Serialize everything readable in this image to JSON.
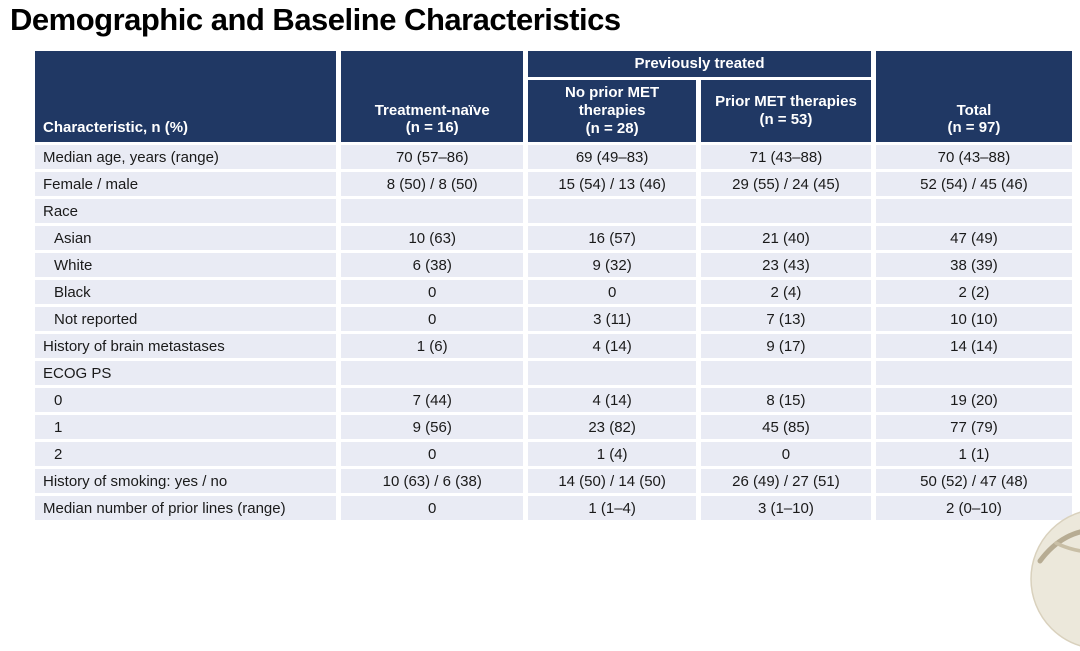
{
  "title": "Demographic and Baseline Characteristics",
  "table": {
    "row_header_label": "Characteristic, n (%)",
    "group_header": "Previously treated",
    "columns": [
      {
        "label": "Treatment-naïve",
        "n": "(n = 16)"
      },
      {
        "label": "No prior MET therapies",
        "n": "(n = 28)"
      },
      {
        "label": "Prior MET therapies",
        "n": "(n = 53)"
      },
      {
        "label": "Total",
        "n": "(n = 97)"
      }
    ],
    "rows": [
      {
        "label": "Median age, years (range)",
        "indent": false,
        "values": [
          "70 (57–86)",
          "69 (49–83)",
          "71 (43–88)",
          "70 (43–88)"
        ]
      },
      {
        "label": "Female / male",
        "indent": false,
        "values": [
          "8 (50) / 8 (50)",
          "15 (54) / 13 (46)",
          "29 (55) / 24 (45)",
          "52 (54) / 45 (46)"
        ]
      },
      {
        "label": "Race",
        "indent": false,
        "values": [
          "",
          "",
          "",
          ""
        ]
      },
      {
        "label": "Asian",
        "indent": true,
        "values": [
          "10 (63)",
          "16 (57)",
          "21 (40)",
          "47 (49)"
        ]
      },
      {
        "label": "White",
        "indent": true,
        "values": [
          "6 (38)",
          "9 (32)",
          "23 (43)",
          "38 (39)"
        ]
      },
      {
        "label": "Black",
        "indent": true,
        "values": [
          "0",
          "0",
          "2 (4)",
          "2 (2)"
        ]
      },
      {
        "label": "Not reported",
        "indent": true,
        "values": [
          "0",
          "3 (11)",
          "7 (13)",
          "10 (10)"
        ]
      },
      {
        "label": "History of brain metastases",
        "indent": false,
        "values": [
          "1 (6)",
          "4 (14)",
          "9 (17)",
          "14 (14)"
        ]
      },
      {
        "label": "ECOG PS",
        "indent": false,
        "values": [
          "",
          "",
          "",
          ""
        ]
      },
      {
        "label": "0",
        "indent": true,
        "values": [
          "7 (44)",
          "4 (14)",
          "8 (15)",
          "19 (20)"
        ]
      },
      {
        "label": "1",
        "indent": true,
        "values": [
          "9 (56)",
          "23 (82)",
          "45 (85)",
          "77 (79)"
        ]
      },
      {
        "label": "2",
        "indent": true,
        "values": [
          "0",
          "1 (4)",
          "0",
          "1 (1)"
        ]
      },
      {
        "label": "History of smoking: yes / no",
        "indent": false,
        "values": [
          "10 (63) / 6 (38)",
          "14 (50) / 14 (50)",
          "26 (49) / 27 (51)",
          "50 (52) / 47 (48)"
        ]
      },
      {
        "label": "Median number of prior lines (range)",
        "indent": false,
        "values": [
          "0",
          "1 (1–4)",
          "3 (1–10)",
          "2 (0–10)"
        ]
      }
    ]
  },
  "colors": {
    "header_bg": "#203864",
    "header_text": "#ffffff",
    "cell_bg": "#e9ebf4",
    "body_text": "#1a1a1a",
    "page_bg": "#ffffff",
    "swirl_fill": "#ece8db",
    "swirl_line": "#b7ac93"
  }
}
